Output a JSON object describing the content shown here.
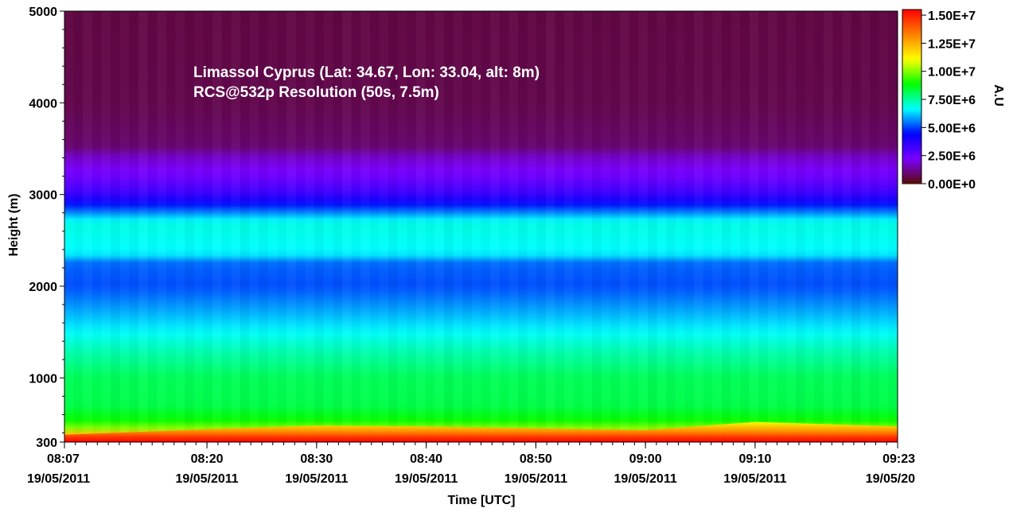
{
  "chart_data": {
    "type": "heatmap",
    "xlabel": "Time [UTC]",
    "ylabel": "Height (m)",
    "colorbar_label": "A.U",
    "annotations": [
      "Limassol Cyprus (Lat: 34.67, Lon: 33.04, alt: 8m)",
      "RCS@532p Resolution (50s, 7.5m)"
    ],
    "x_range_minutes": [
      487,
      563
    ],
    "ylim": [
      300,
      5000
    ],
    "clim": [
      0,
      15500000
    ],
    "x_ticks": [
      {
        "minutes": 487,
        "time": "08:07",
        "date": "19/05/2011"
      },
      {
        "minutes": 500,
        "time": "08:20",
        "date": "19/05/2011"
      },
      {
        "minutes": 510,
        "time": "08:30",
        "date": "19/05/2011"
      },
      {
        "minutes": 520,
        "time": "08:40",
        "date": "19/05/2011"
      },
      {
        "minutes": 530,
        "time": "08:50",
        "date": "19/05/2011"
      },
      {
        "minutes": 540,
        "time": "09:00",
        "date": "19/05/2011"
      },
      {
        "minutes": 550,
        "time": "09:10",
        "date": "19/05/2011"
      },
      {
        "minutes": 563,
        "time": "09:23",
        "date": "19/05/20"
      }
    ],
    "y_ticks": [
      {
        "value": 300,
        "label": "300"
      },
      {
        "value": 1000,
        "label": "1000"
      },
      {
        "value": 2000,
        "label": "2000"
      },
      {
        "value": 3000,
        "label": "3000"
      },
      {
        "value": 4000,
        "label": "4000"
      },
      {
        "value": 5000,
        "label": "5000"
      }
    ],
    "colorbar_ticks": [
      {
        "value": 15000000,
        "label": "1.50E+7"
      },
      {
        "value": 12500000,
        "label": "1.25E+7"
      },
      {
        "value": 10000000,
        "label": "1.00E+7"
      },
      {
        "value": 7500000,
        "label": "7.50E+6"
      },
      {
        "value": 5000000,
        "label": "5.00E+6"
      },
      {
        "value": 2500000,
        "label": "2.50E+6"
      },
      {
        "value": 0,
        "label": "0.00E+0"
      }
    ],
    "colormap": [
      "#5a0b0b",
      "#7a00ff",
      "#0000ff",
      "#00ffff",
      "#00ff00",
      "#ffff00",
      "#ff8000",
      "#ff0000"
    ],
    "profile_nodes": [
      {
        "height": 300,
        "value": 15000000
      },
      {
        "height": 350,
        "value": 13200000
      },
      {
        "height": 420,
        "value": 10500000
      },
      {
        "height": 520,
        "value": 9000000
      },
      {
        "height": 700,
        "value": 8200000
      },
      {
        "height": 1000,
        "value": 8100000
      },
      {
        "height": 1300,
        "value": 7300000
      },
      {
        "height": 1700,
        "value": 6000000
      },
      {
        "height": 2000,
        "value": 5100000
      },
      {
        "height": 2250,
        "value": 5300000
      },
      {
        "height": 2350,
        "value": 6600000
      },
      {
        "height": 2700,
        "value": 6900000
      },
      {
        "height": 2850,
        "value": 5000000
      },
      {
        "height": 3000,
        "value": 3400000
      },
      {
        "height": 3200,
        "value": 2400000
      },
      {
        "height": 3420,
        "value": 1700000
      },
      {
        "height": 3520,
        "value": 900000
      },
      {
        "height": 4000,
        "value": 600000
      },
      {
        "height": 5000,
        "value": 500000
      }
    ],
    "surface_layer": [
      {
        "minutes": 487,
        "top_height": 380
      },
      {
        "minutes": 500,
        "top_height": 440
      },
      {
        "minutes": 510,
        "top_height": 480
      },
      {
        "minutes": 520,
        "top_height": 470
      },
      {
        "minutes": 530,
        "top_height": 450
      },
      {
        "minutes": 540,
        "top_height": 430
      },
      {
        "minutes": 550,
        "top_height": 520
      },
      {
        "minutes": 563,
        "top_height": 470
      }
    ]
  }
}
